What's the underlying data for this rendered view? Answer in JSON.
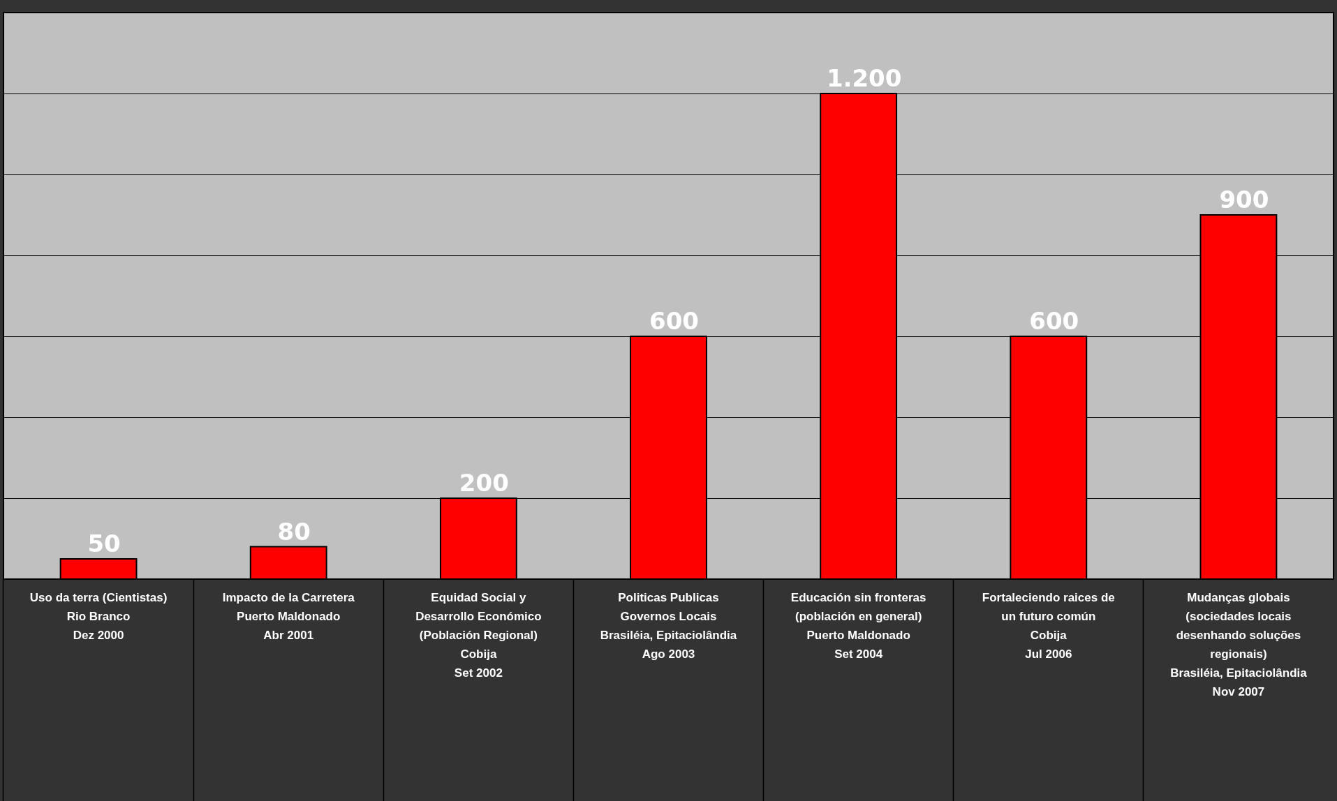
{
  "chart_data": {
    "type": "bar",
    "categories": [
      "Uso da terra (Cientistas)\nRio Branco\nDez 2000",
      "Impacto de la Carretera\nPuerto Maldonado\nAbr 2001",
      "Equidad Social y\nDesarrollo Económico\n(Población Regional)\nCobija\nSet 2002",
      "Politicas Publicas\nGovernos Locais\nBrasiléia, Epitaciolândia\nAgo 2003",
      "Educación sin fronteras\n(población en general)\nPuerto Maldonado\nSet 2004",
      "Fortaleciendo raices de\nun futuro común\nCobija\nJul 2006",
      "Mudanças globais\n(sociedades locais\ndesenhando soluções\nregionais)\nBrasiléia, Epitaciolândia\nNov 2007"
    ],
    "values": [
      50,
      80,
      200,
      600,
      1200,
      600,
      900
    ],
    "value_labels": [
      "50",
      "80",
      "200",
      "600",
      "1.200",
      "600",
      "900"
    ],
    "color": "#ff0000",
    "ylim": [
      0,
      1400
    ],
    "yticks": [
      0,
      200,
      400,
      600,
      800,
      1000,
      1200,
      1400
    ],
    "grid": "y",
    "tick_labels": "x"
  }
}
